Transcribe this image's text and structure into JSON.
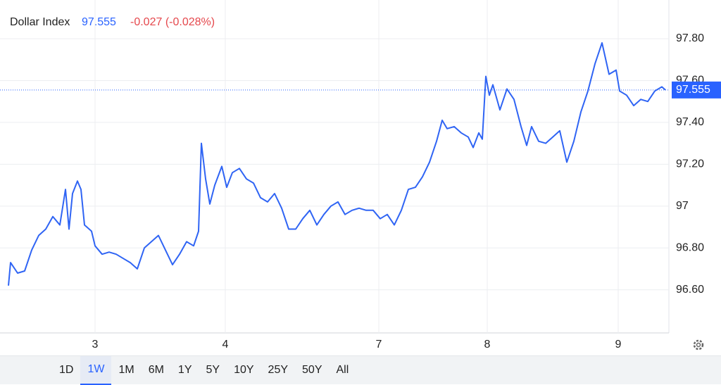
{
  "chart_data": {
    "type": "line",
    "title": "Dollar Index",
    "last_value": 97.555,
    "change_label": "-0.027 (-0.028%)",
    "line_color": "#2f64f4",
    "last_value_color": "#2962ff",
    "change_color": "#e5484d",
    "grid": true,
    "xlim": [
      0,
      95
    ],
    "ylim": [
      96.394,
      97.985
    ],
    "xticks": [
      {
        "value": 13.5,
        "label": "3"
      },
      {
        "value": 32,
        "label": "4"
      },
      {
        "value": 53.8,
        "label": "7"
      },
      {
        "value": 69.2,
        "label": "8"
      },
      {
        "value": 87.8,
        "label": "9"
      }
    ],
    "yticks": [
      {
        "value": 96.6,
        "label": "96.60"
      },
      {
        "value": 96.8,
        "label": "96.80"
      },
      97,
      {
        "value": 97.2,
        "label": "97.20"
      },
      {
        "value": 97.4,
        "label": "97.40"
      },
      {
        "value": 97.6,
        "label": "97.60"
      },
      {
        "value": 97.8,
        "label": "97.80"
      }
    ],
    "x": [
      1.2,
      1.5,
      2.5,
      3.5,
      4.5,
      5.5,
      6.5,
      7.5,
      8.5,
      9.3,
      9.8,
      10.3,
      11,
      11.5,
      12,
      13,
      13.5,
      14.5,
      15.5,
      16.5,
      17.5,
      18.5,
      19.5,
      20.5,
      21.5,
      22.5,
      23.5,
      24.5,
      25.5,
      26.5,
      27.5,
      28.2,
      28.6,
      29.2,
      29.8,
      30.5,
      31.5,
      32.2,
      33,
      34,
      35,
      36,
      37,
      38,
      39,
      40,
      41,
      42,
      43,
      44,
      45,
      46,
      47,
      48,
      49,
      50,
      51,
      52,
      53,
      54,
      55,
      56,
      57,
      58,
      59,
      60,
      61,
      62,
      62.8,
      63.5,
      64.5,
      65.5,
      66.5,
      67.2,
      68,
      68.5,
      69,
      69.5,
      70,
      71,
      72,
      73,
      74,
      74.8,
      75.5,
      76.5,
      77.5,
      78.5,
      79.5,
      80.5,
      81.5,
      82.5,
      83.5,
      84.5,
      85.5,
      86.5,
      87.5,
      88,
      89,
      90,
      91,
      92,
      93,
      94,
      94.5
    ],
    "series": [
      {
        "name": "Dollar Index",
        "values": [
          96.62,
          96.73,
          96.68,
          96.69,
          96.79,
          96.86,
          96.89,
          96.95,
          96.91,
          97.08,
          96.89,
          97.06,
          97.12,
          97.08,
          96.91,
          96.88,
          96.81,
          96.77,
          96.78,
          96.77,
          96.75,
          96.73,
          96.7,
          96.8,
          96.83,
          96.86,
          96.79,
          96.72,
          96.77,
          96.83,
          96.81,
          96.88,
          97.3,
          97.13,
          97.01,
          97.1,
          97.19,
          97.09,
          97.16,
          97.18,
          97.13,
          97.11,
          97.04,
          97.02,
          97.06,
          96.99,
          96.89,
          96.89,
          96.94,
          96.98,
          96.91,
          96.96,
          97.0,
          97.02,
          96.96,
          96.98,
          96.99,
          96.98,
          96.98,
          96.94,
          96.96,
          96.91,
          96.98,
          97.08,
          97.09,
          97.14,
          97.21,
          97.31,
          97.41,
          97.37,
          97.38,
          97.35,
          97.33,
          97.28,
          97.35,
          97.32,
          97.62,
          97.53,
          97.58,
          97.46,
          97.56,
          97.51,
          97.38,
          97.29,
          97.38,
          97.31,
          97.3,
          97.33,
          97.36,
          97.21,
          97.31,
          97.45,
          97.55,
          97.68,
          97.78,
          97.63,
          97.65,
          97.55,
          97.53,
          97.48,
          97.51,
          97.5,
          97.55,
          97.57,
          97.555
        ]
      }
    ],
    "ranges": [
      "1D",
      "1W",
      "1M",
      "6M",
      "1Y",
      "5Y",
      "10Y",
      "25Y",
      "50Y",
      "All"
    ],
    "active_range": "1W"
  }
}
